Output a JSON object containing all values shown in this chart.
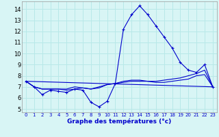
{
  "xlabel": "Graphe des températures (°c)",
  "bg_color": "#d8f5f5",
  "grid_color": "#b8e8e8",
  "line_color": "#0000cc",
  "x_ticks": [
    0,
    1,
    2,
    3,
    4,
    5,
    6,
    7,
    8,
    9,
    10,
    11,
    12,
    13,
    14,
    15,
    16,
    17,
    18,
    19,
    20,
    21,
    22,
    23
  ],
  "y_ticks": [
    5,
    6,
    7,
    8,
    9,
    10,
    11,
    12,
    13,
    14
  ],
  "ylim": [
    4.7,
    14.7
  ],
  "xlim": [
    -0.5,
    23.5
  ],
  "series1": {
    "x": [
      0,
      1,
      2,
      3,
      4,
      5,
      6,
      7,
      8,
      9,
      10,
      11,
      12,
      13,
      14,
      15,
      16,
      17,
      18,
      19,
      20,
      21,
      22,
      23
    ],
    "y": [
      7.5,
      7.0,
      6.3,
      6.7,
      6.6,
      6.5,
      6.8,
      6.7,
      5.6,
      5.2,
      5.7,
      7.3,
      12.2,
      13.5,
      14.3,
      13.5,
      12.5,
      11.5,
      10.5,
      9.2,
      8.5,
      8.3,
      9.0,
      7.0
    ]
  },
  "series2": {
    "x": [
      0,
      1,
      2,
      3,
      4,
      5,
      6,
      7,
      8,
      9,
      10,
      11,
      12,
      13,
      14,
      15,
      16,
      17,
      18,
      19,
      20,
      21,
      22,
      23
    ],
    "y": [
      7.5,
      7.0,
      6.8,
      6.8,
      6.8,
      6.8,
      7.0,
      6.9,
      6.8,
      6.9,
      7.2,
      7.3,
      7.4,
      7.5,
      7.5,
      7.5,
      7.5,
      7.6,
      7.7,
      7.8,
      8.0,
      8.2,
      8.5,
      7.0
    ]
  },
  "series3": {
    "x": [
      0,
      1,
      2,
      3,
      4,
      5,
      6,
      7,
      8,
      9,
      10,
      11,
      12,
      13,
      14,
      15,
      16,
      17,
      18,
      19,
      20,
      21,
      22,
      23
    ],
    "y": [
      7.5,
      7.0,
      6.8,
      6.8,
      6.8,
      6.7,
      6.8,
      6.9,
      6.8,
      7.0,
      7.2,
      7.3,
      7.5,
      7.6,
      7.6,
      7.5,
      7.4,
      7.4,
      7.5,
      7.6,
      7.7,
      8.0,
      8.1,
      7.0
    ]
  },
  "series4": {
    "x": [
      0,
      23
    ],
    "y": [
      7.5,
      7.0
    ]
  }
}
